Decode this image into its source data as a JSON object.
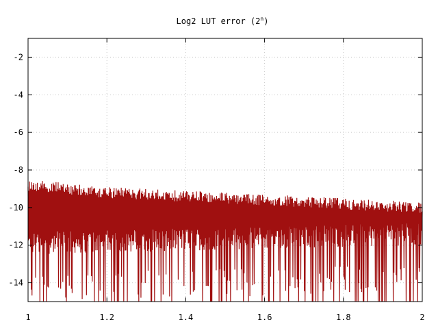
{
  "chart_data": {
    "type": "line",
    "title": "Log2 LUT error (2",
    "title_superscript": "n",
    "title_suffix": ")",
    "xlabel": "",
    "ylabel": "",
    "xlim": [
      1,
      2
    ],
    "ylim": [
      -15,
      -1
    ],
    "x_ticks": [
      1,
      1.2,
      1.4,
      1.6,
      1.8,
      2
    ],
    "x_tick_labels": [
      "1",
      "1.2",
      "1.4",
      "1.6",
      "1.8",
      "2"
    ],
    "y_ticks": [
      -2,
      -4,
      -6,
      -8,
      -10,
      -12,
      -14
    ],
    "y_tick_labels": [
      "-2",
      "-4",
      "-6",
      "-8",
      "-10",
      "-12",
      "-14"
    ],
    "grid": true,
    "legend": false,
    "series": [
      {
        "color": "#a01010",
        "x_range": [
          1,
          2
        ],
        "upper_envelope": {
          "x": [
            1,
            1.2,
            1.4,
            1.6,
            1.8,
            2
          ],
          "y": [
            -8.5,
            -8.9,
            -9.1,
            -9.3,
            -9.5,
            -9.7
          ]
        },
        "typical_band": {
          "x": [
            1,
            2
          ],
          "y_low": [
            -12.5,
            -12.0
          ],
          "y_high": [
            -8.6,
            -9.7
          ]
        },
        "lower_extreme": -15
      }
    ]
  },
  "colors": {
    "series": "#a01010",
    "grid": "#c8c8c8",
    "axis": "#000000"
  }
}
